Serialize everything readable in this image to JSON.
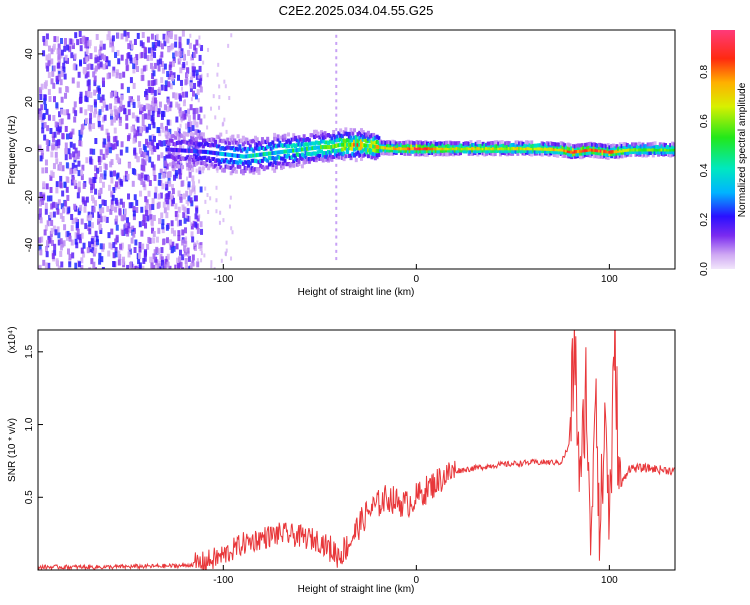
{
  "title": "C2E2.2025.034.04.55.G25",
  "chart_data": [
    {
      "type": "heatmap",
      "title": "C2E2.2025.034.04.55.G25",
      "xlabel": "Height of straight line (km)",
      "ylabel": "Frequency (Hz)",
      "xlim": [
        -196,
        134
      ],
      "ylim": [
        -50,
        50
      ],
      "xticks": [
        -100,
        0,
        100
      ],
      "yticks": [
        -40,
        -20,
        0,
        20,
        40
      ],
      "colorbar": {
        "label": "Normalized spectral amplitude",
        "range": [
          0,
          0.97
        ],
        "ticks": [
          0.0,
          0.2,
          0.4,
          0.6,
          0.8
        ],
        "tick_labels": [
          "0.0",
          "0.2",
          "0.4",
          "0.6",
          "0.8"
        ]
      },
      "ridge": {
        "x": [
          -130,
          -110,
          -100,
          -90,
          -80,
          -70,
          -60,
          -50,
          -45,
          -40,
          -30,
          -20,
          -10,
          0,
          20,
          40,
          60,
          75,
          80,
          90,
          100,
          110,
          134
        ],
        "frequency": [
          0,
          -1,
          -2,
          -3,
          -2,
          -1,
          0,
          1,
          1,
          2,
          2,
          1,
          0.5,
          0.5,
          0.5,
          0.5,
          0.5,
          0,
          -1,
          0,
          -1,
          0,
          0
        ],
        "amplitude": [
          0.2,
          0.25,
          0.35,
          0.4,
          0.45,
          0.5,
          0.5,
          0.55,
          0.55,
          0.7,
          0.8,
          0.7,
          0.75,
          0.9,
          0.7,
          0.7,
          0.7,
          0.75,
          0.9,
          0.85,
          0.85,
          0.6,
          0.6
        ]
      }
    },
    {
      "type": "line",
      "xlabel": "Height of straight line (km)",
      "ylabel": "SNR (10 * v/v)",
      "y_multiplier": "(x10⁴)",
      "xlim": [
        -196,
        134
      ],
      "ylim": [
        0,
        1.65
      ],
      "xticks": [
        -100,
        0,
        100
      ],
      "yticks": [
        0.5,
        1.0,
        1.5
      ],
      "ytick_labels": [
        "0.5",
        "1.0",
        "1.5"
      ],
      "series": [
        {
          "color": "#e8373a",
          "x": [
            -196,
            -160,
            -120,
            -110,
            -100,
            -90,
            -80,
            -70,
            -60,
            -50,
            -45,
            -40,
            -35,
            -30,
            -25,
            -20,
            -15,
            -10,
            -5,
            0,
            5,
            10,
            15,
            20,
            30,
            40,
            50,
            60,
            70,
            75,
            79,
            82,
            85,
            88,
            90,
            93,
            95,
            98,
            100,
            103,
            105,
            110,
            120,
            134
          ],
          "y": [
            0.02,
            0.02,
            0.03,
            0.05,
            0.1,
            0.18,
            0.22,
            0.25,
            0.23,
            0.2,
            0.15,
            0.1,
            0.18,
            0.3,
            0.4,
            0.45,
            0.5,
            0.47,
            0.45,
            0.5,
            0.55,
            0.6,
            0.65,
            0.68,
            0.7,
            0.72,
            0.73,
            0.74,
            0.74,
            0.74,
            0.85,
            1.55,
            0.5,
            1.35,
            0.1,
            1.4,
            0.2,
            1.1,
            0.3,
            1.6,
            0.55,
            0.7,
            0.7,
            0.68
          ]
        }
      ]
    }
  ]
}
